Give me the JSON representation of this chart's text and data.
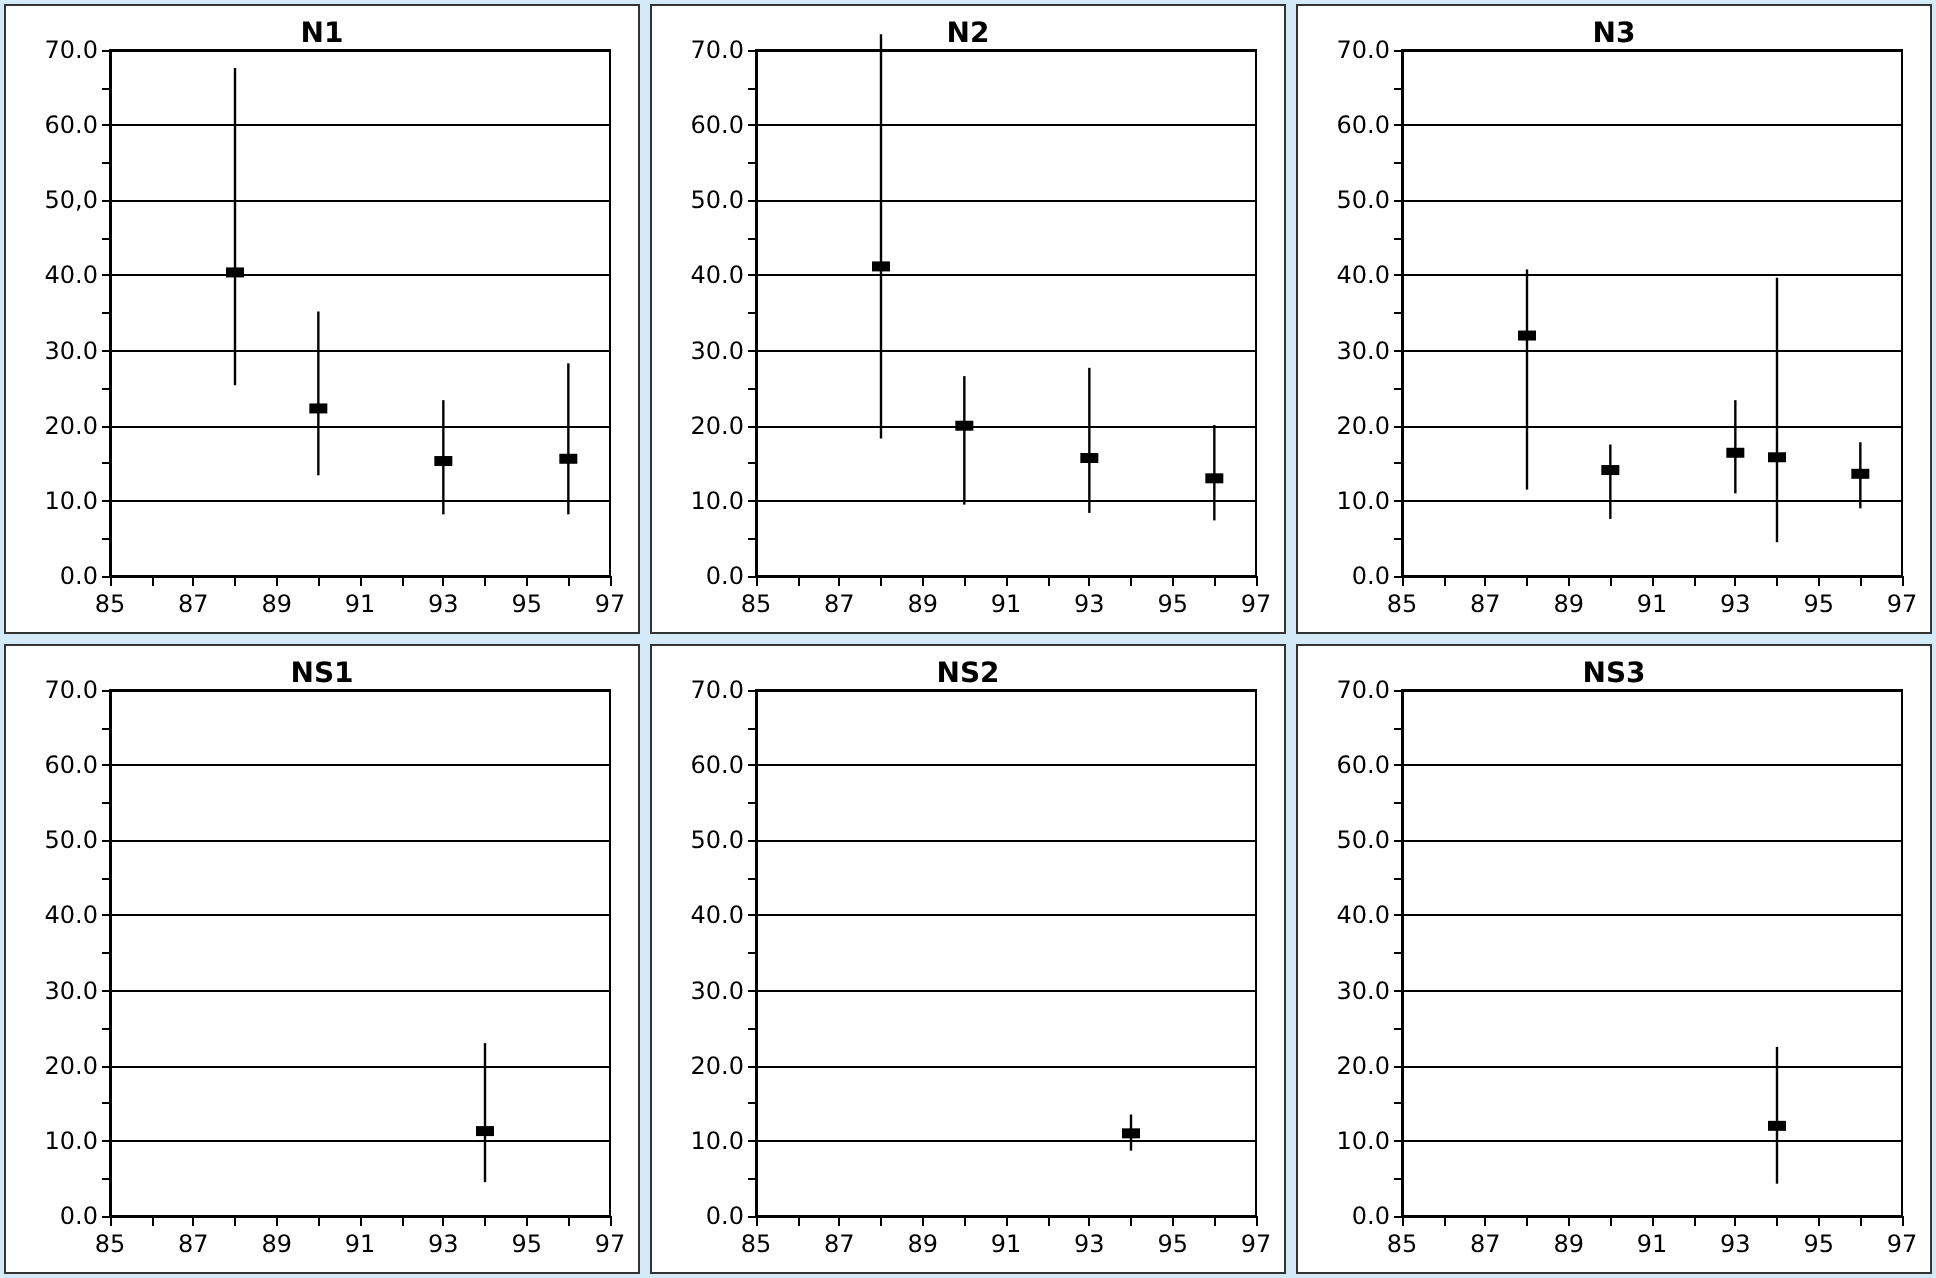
{
  "chart_data": [
    {
      "type": "scatter",
      "title": "N1",
      "color": "#000000",
      "marker": "square",
      "grid": "y",
      "x": [
        88,
        90,
        93,
        96
      ],
      "values": [
        40.4,
        22.3,
        15.3,
        15.6
      ],
      "errors": [
        [
          25.4,
          67.6
        ],
        [
          13.4,
          35.2
        ],
        [
          8.2,
          23.4
        ],
        [
          8.2,
          28.3
        ]
      ],
      "xlim": [
        85,
        97
      ],
      "ylim": [
        0,
        70
      ],
      "xticks": [
        85,
        {
          "value": 86,
          "label": null
        },
        87,
        {
          "value": 88,
          "label": null
        },
        89,
        {
          "value": 90,
          "label": null
        },
        91,
        {
          "value": 92,
          "label": null
        },
        93,
        {
          "value": 94,
          "label": null
        },
        95,
        {
          "value": 96,
          "label": null
        },
        97
      ],
      "yticks": [
        {
          "value": 0,
          "label": "0.0"
        },
        {
          "value": 5,
          "label": null
        },
        {
          "value": 10,
          "label": "10.0"
        },
        {
          "value": 15,
          "label": null
        },
        {
          "value": 20,
          "label": "20.0"
        },
        {
          "value": 25,
          "label": null
        },
        {
          "value": 30,
          "label": "30.0"
        },
        {
          "value": 35,
          "label": null
        },
        {
          "value": 40,
          "label": "40.0"
        },
        {
          "value": 45,
          "label": null
        },
        {
          "value": 50,
          "label": "50,0"
        },
        {
          "value": 55,
          "label": null
        },
        {
          "value": 60,
          "label": "60.0"
        },
        {
          "value": 65,
          "label": null
        },
        {
          "value": 70,
          "label": "70.0"
        }
      ]
    },
    {
      "type": "scatter",
      "title": "N2",
      "color": "#000000",
      "marker": "square",
      "grid": "y",
      "x": [
        88,
        90,
        93,
        96
      ],
      "values": [
        41.2,
        20.0,
        15.7,
        13.0
      ],
      "errors": [
        [
          18.3,
          72.1
        ],
        [
          9.5,
          26.6
        ],
        [
          8.4,
          27.7
        ],
        [
          7.4,
          20.1
        ]
      ],
      "xlim": [
        85,
        97
      ],
      "ylim": [
        0,
        70
      ],
      "xticks": [
        85,
        {
          "value": 86,
          "label": null
        },
        87,
        {
          "value": 88,
          "label": null
        },
        89,
        {
          "value": 90,
          "label": null
        },
        91,
        {
          "value": 92,
          "label": null
        },
        93,
        {
          "value": 94,
          "label": null
        },
        95,
        {
          "value": 96,
          "label": null
        },
        97
      ],
      "yticks": [
        {
          "value": 0,
          "label": "0.0"
        },
        {
          "value": 5,
          "label": null
        },
        {
          "value": 10,
          "label": "10.0"
        },
        {
          "value": 15,
          "label": null
        },
        {
          "value": 20,
          "label": "20.0"
        },
        {
          "value": 25,
          "label": null
        },
        {
          "value": 30,
          "label": "30.0"
        },
        {
          "value": 35,
          "label": null
        },
        {
          "value": 40,
          "label": "40.0"
        },
        {
          "value": 45,
          "label": null
        },
        {
          "value": 50,
          "label": "50.0"
        },
        {
          "value": 55,
          "label": null
        },
        {
          "value": 60,
          "label": "60.0"
        },
        {
          "value": 65,
          "label": null
        },
        {
          "value": 70,
          "label": "70.0"
        }
      ]
    },
    {
      "type": "scatter",
      "title": "N3",
      "color": "#000000",
      "marker": "square",
      "grid": "y",
      "x": [
        88,
        90,
        93,
        94,
        96
      ],
      "values": [
        32.0,
        14.1,
        16.4,
        15.8,
        13.6
      ],
      "errors": [
        [
          11.5,
          40.8
        ],
        [
          7.6,
          17.5
        ],
        [
          11.0,
          23.4
        ],
        [
          4.5,
          39.7
        ],
        [
          9.0,
          17.8
        ]
      ],
      "xlim": [
        85,
        97
      ],
      "ylim": [
        0,
        70
      ],
      "xticks": [
        85,
        {
          "value": 86,
          "label": null
        },
        87,
        {
          "value": 88,
          "label": null
        },
        89,
        {
          "value": 90,
          "label": null
        },
        91,
        {
          "value": 92,
          "label": null
        },
        93,
        {
          "value": 94,
          "label": null
        },
        95,
        {
          "value": 96,
          "label": null
        },
        97
      ],
      "yticks": [
        {
          "value": 0,
          "label": "0.0"
        },
        {
          "value": 5,
          "label": null
        },
        {
          "value": 10,
          "label": "10.0"
        },
        {
          "value": 15,
          "label": null
        },
        {
          "value": 20,
          "label": "20.0"
        },
        {
          "value": 25,
          "label": null
        },
        {
          "value": 30,
          "label": "30.0"
        },
        {
          "value": 35,
          "label": null
        },
        {
          "value": 40,
          "label": "40.0"
        },
        {
          "value": 45,
          "label": null
        },
        {
          "value": 50,
          "label": "50.0"
        },
        {
          "value": 55,
          "label": null
        },
        {
          "value": 60,
          "label": "60.0"
        },
        {
          "value": 65,
          "label": null
        },
        {
          "value": 70,
          "label": "70.0"
        }
      ]
    },
    {
      "type": "scatter",
      "title": "NS1",
      "color": "#000000",
      "marker": "square",
      "grid": "y",
      "x": [
        94
      ],
      "values": [
        11.3
      ],
      "errors": [
        [
          4.5,
          23.0
        ]
      ],
      "xlim": [
        85,
        97
      ],
      "ylim": [
        0,
        70
      ],
      "xticks": [
        85,
        {
          "value": 86,
          "label": null
        },
        87,
        {
          "value": 88,
          "label": null
        },
        89,
        {
          "value": 90,
          "label": null
        },
        91,
        {
          "value": 92,
          "label": null
        },
        93,
        {
          "value": 94,
          "label": null
        },
        95,
        {
          "value": 96,
          "label": null
        },
        97
      ],
      "yticks": [
        {
          "value": 0,
          "label": "0.0"
        },
        {
          "value": 5,
          "label": null
        },
        {
          "value": 10,
          "label": "10.0"
        },
        {
          "value": 15,
          "label": null
        },
        {
          "value": 20,
          "label": "20.0"
        },
        {
          "value": 25,
          "label": null
        },
        {
          "value": 30,
          "label": "30.0"
        },
        {
          "value": 35,
          "label": null
        },
        {
          "value": 40,
          "label": "40.0"
        },
        {
          "value": 45,
          "label": null
        },
        {
          "value": 50,
          "label": "50.0"
        },
        {
          "value": 55,
          "label": null
        },
        {
          "value": 60,
          "label": "60.0"
        },
        {
          "value": 65,
          "label": null
        },
        {
          "value": 70,
          "label": "70.0"
        }
      ]
    },
    {
      "type": "scatter",
      "title": "NS2",
      "color": "#000000",
      "marker": "square",
      "grid": "y",
      "x": [
        94
      ],
      "values": [
        11.0
      ],
      "errors": [
        [
          8.7,
          13.5
        ]
      ],
      "xlim": [
        85,
        97
      ],
      "ylim": [
        0,
        70
      ],
      "xticks": [
        85,
        {
          "value": 86,
          "label": null
        },
        87,
        {
          "value": 88,
          "label": null
        },
        89,
        {
          "value": 90,
          "label": null
        },
        91,
        {
          "value": 92,
          "label": null
        },
        93,
        {
          "value": 94,
          "label": null
        },
        95,
        {
          "value": 96,
          "label": null
        },
        97
      ],
      "yticks": [
        {
          "value": 0,
          "label": "0.0"
        },
        {
          "value": 5,
          "label": null
        },
        {
          "value": 10,
          "label": "10.0"
        },
        {
          "value": 15,
          "label": null
        },
        {
          "value": 20,
          "label": "20.0"
        },
        {
          "value": 25,
          "label": null
        },
        {
          "value": 30,
          "label": "30.0"
        },
        {
          "value": 35,
          "label": null
        },
        {
          "value": 40,
          "label": "40.0"
        },
        {
          "value": 45,
          "label": null
        },
        {
          "value": 50,
          "label": "50.0"
        },
        {
          "value": 55,
          "label": null
        },
        {
          "value": 60,
          "label": "60.0"
        },
        {
          "value": 65,
          "label": null
        },
        {
          "value": 70,
          "label": "70.0"
        }
      ]
    },
    {
      "type": "scatter",
      "title": "NS3",
      "color": "#000000",
      "marker": "square",
      "grid": "y",
      "x": [
        94
      ],
      "values": [
        12.0
      ],
      "errors": [
        [
          4.3,
          22.5
        ]
      ],
      "xlim": [
        85,
        97
      ],
      "ylim": [
        0,
        70
      ],
      "xticks": [
        85,
        {
          "value": 86,
          "label": null
        },
        87,
        {
          "value": 88,
          "label": null
        },
        89,
        {
          "value": 90,
          "label": null
        },
        91,
        {
          "value": 92,
          "label": null
        },
        93,
        {
          "value": 94,
          "label": null
        },
        95,
        {
          "value": 96,
          "label": null
        },
        97
      ],
      "yticks": [
        {
          "value": 0,
          "label": "0.0"
        },
        {
          "value": 5,
          "label": null
        },
        {
          "value": 10,
          "label": "10.0"
        },
        {
          "value": 15,
          "label": null
        },
        {
          "value": 20,
          "label": "20.0"
        },
        {
          "value": 25,
          "label": null
        },
        {
          "value": 30,
          "label": "30.0"
        },
        {
          "value": 35,
          "label": null
        },
        {
          "value": 40,
          "label": "40.0"
        },
        {
          "value": 45,
          "label": null
        },
        {
          "value": 50,
          "label": "50.0"
        },
        {
          "value": 55,
          "label": null
        },
        {
          "value": 60,
          "label": "60.0"
        },
        {
          "value": 65,
          "label": null
        },
        {
          "value": 70,
          "label": "70.0"
        }
      ]
    }
  ]
}
